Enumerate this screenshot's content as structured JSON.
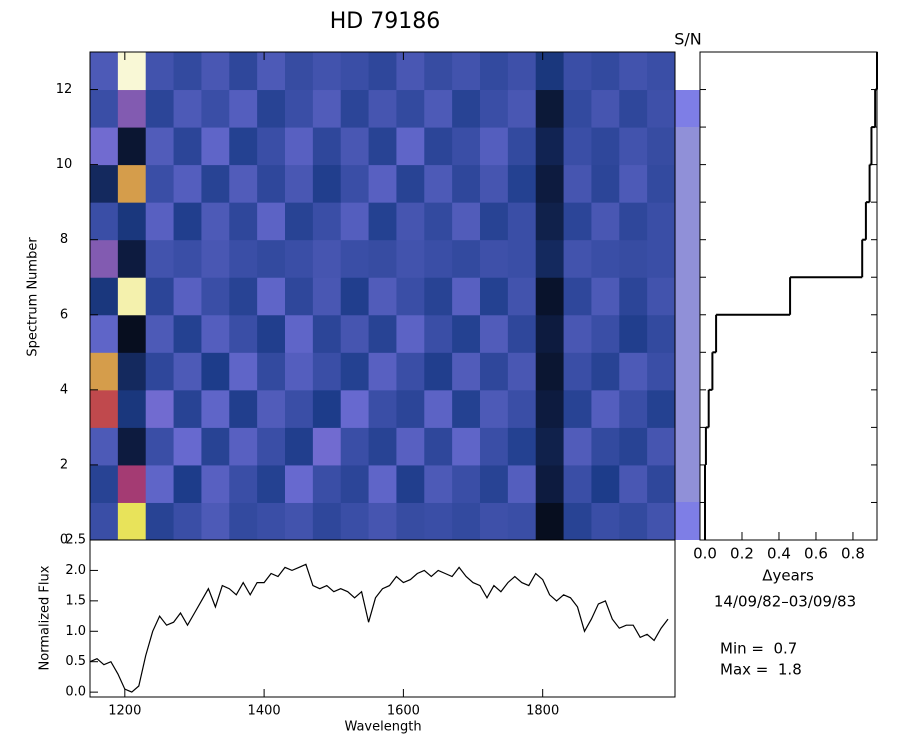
{
  "chart_data": [
    {
      "type": "heatmap",
      "title": "HD  79186",
      "ylabel": "Spectrum Number",
      "sn_label": "S/N",
      "bins": [
        1150,
        1190,
        1230,
        1270,
        1310,
        1350,
        1390,
        1430,
        1470,
        1510,
        1550,
        1590,
        1630,
        1670,
        1710,
        1750,
        1790,
        1830,
        1870,
        1910,
        1950,
        1990
      ],
      "rows": [
        [
          1.0,
          1.6,
          0.95,
          1.0,
          1.05,
          0.98,
          1.0,
          1.02,
          0.97,
          1.0,
          1.03,
          0.99,
          1.0,
          0.98,
          1.01,
          1.0,
          0.75,
          0.95,
          1.0,
          0.98,
          1.02
        ],
        [
          0.95,
          1.3,
          1.1,
          0.92,
          1.08,
          1.0,
          0.94,
          1.12,
          1.0,
          0.96,
          1.1,
          0.93,
          1.05,
          1.0,
          0.95,
          1.07,
          0.8,
          1.0,
          0.92,
          1.04,
          0.97
        ],
        [
          1.05,
          0.8,
          1.0,
          1.12,
          0.95,
          1.08,
          1.0,
          0.93,
          1.15,
          1.0,
          0.95,
          1.08,
          0.97,
          1.1,
          1.0,
          0.94,
          0.82,
          1.06,
          0.98,
          0.95,
          1.03
        ],
        [
          1.4,
          0.9,
          1.15,
          0.95,
          1.1,
          0.93,
          1.06,
          1.0,
          0.92,
          1.12,
          1.0,
          0.96,
          1.09,
          0.94,
          1.05,
          1.0,
          0.8,
          0.95,
          1.07,
          1.0,
          0.94
        ],
        [
          1.5,
          0.85,
          0.97,
          1.05,
          0.92,
          1.1,
          0.98,
          1.07,
          1.0,
          0.94,
          1.08,
          1.0,
          0.93,
          1.06,
          0.97,
          1.04,
          0.78,
          1.0,
          0.95,
          1.05,
          1.0
        ],
        [
          1.1,
          0.75,
          1.05,
          0.94,
          1.07,
          1.0,
          0.93,
          1.1,
          0.96,
          1.03,
          0.95,
          1.09,
          1.0,
          0.94,
          1.06,
          0.97,
          0.8,
          1.04,
          1.0,
          0.93,
          0.98
        ],
        [
          0.9,
          1.7,
          0.96,
          1.08,
          1.0,
          0.95,
          1.1,
          0.97,
          1.04,
          0.93,
          1.06,
          1.0,
          0.95,
          1.08,
          0.94,
          1.02,
          0.77,
          0.97,
          1.05,
          0.96,
          1.02
        ],
        [
          1.2,
          0.8,
          1.02,
          1.0,
          1.04,
          1.0,
          0.98,
          1.0,
          1.03,
          1.0,
          0.99,
          1.02,
          1.0,
          0.98,
          1.01,
          1.0,
          0.85,
          1.02,
          1.0,
          0.99,
          1.0
        ],
        [
          1.0,
          0.9,
          1.08,
          0.93,
          1.05,
          0.97,
          1.09,
          0.95,
          1.0,
          1.07,
          0.94,
          1.03,
          0.98,
          1.06,
          0.95,
          1.0,
          0.82,
          0.96,
          1.04,
          0.97,
          1.0
        ],
        [
          0.85,
          1.5,
          1.0,
          1.07,
          0.95,
          1.06,
          0.97,
          1.04,
          0.93,
          1.0,
          1.08,
          0.95,
          1.05,
          0.97,
          1.03,
          0.94,
          0.8,
          1.03,
          0.96,
          1.05,
          0.98
        ],
        [
          1.15,
          0.78,
          1.06,
          0.96,
          1.1,
          0.94,
          1.0,
          1.08,
          0.97,
          1.04,
          0.95,
          1.1,
          0.96,
          1.0,
          1.07,
          0.98,
          0.83,
          1.0,
          0.97,
          1.02,
          0.99
        ],
        [
          1.0,
          1.2,
          0.96,
          1.05,
          1.0,
          1.07,
          0.95,
          1.0,
          1.06,
          0.96,
          1.03,
          0.98,
          1.05,
          0.95,
          1.0,
          1.04,
          0.79,
          0.98,
          1.03,
          0.97,
          1.01
        ],
        [
          1.05,
          1.75,
          1.02,
          0.98,
          1.04,
          0.97,
          1.05,
          0.99,
          1.02,
          1.0,
          0.97,
          1.04,
          0.99,
          1.02,
          0.98,
          1.01,
          0.9,
          1.0,
          0.98,
          1.02,
          1.0
        ]
      ],
      "xlim": [
        1150,
        1990
      ],
      "xticks": [
        1200,
        1400,
        1600,
        1800
      ],
      "ylim": [
        0,
        13
      ],
      "yticks": [
        0,
        2,
        4,
        6,
        8,
        10,
        12
      ],
      "zmin": {
        "value": 0.7,
        "label": "Min =  0.7"
      },
      "zmax": {
        "value": 1.8,
        "label": "Max =  1.8"
      },
      "colors": [
        "#000000",
        "#1d3c8a",
        "#6e6ed6",
        "#b8284e",
        "#e6e04a",
        "#ffffff"
      ]
    },
    {
      "type": "line",
      "ylabel": "Normalized Flux",
      "xlabel": "Wavelength",
      "color": "#000000",
      "x": [
        1150,
        1160,
        1170,
        1180,
        1190,
        1200,
        1210,
        1220,
        1230,
        1240,
        1250,
        1260,
        1270,
        1280,
        1290,
        1300,
        1310,
        1320,
        1330,
        1340,
        1350,
        1360,
        1370,
        1380,
        1390,
        1400,
        1410,
        1420,
        1430,
        1440,
        1450,
        1460,
        1470,
        1480,
        1490,
        1500,
        1510,
        1520,
        1530,
        1540,
        1550,
        1560,
        1570,
        1580,
        1590,
        1600,
        1610,
        1620,
        1630,
        1640,
        1650,
        1660,
        1670,
        1680,
        1690,
        1700,
        1710,
        1720,
        1730,
        1740,
        1750,
        1760,
        1770,
        1780,
        1790,
        1800,
        1810,
        1820,
        1830,
        1840,
        1850,
        1860,
        1870,
        1880,
        1890,
        1900,
        1910,
        1920,
        1930,
        1940,
        1950,
        1960,
        1970,
        1980
      ],
      "values": [
        0.5,
        0.55,
        0.45,
        0.5,
        0.3,
        0.05,
        0.0,
        0.1,
        0.6,
        1.0,
        1.25,
        1.1,
        1.15,
        1.3,
        1.1,
        1.3,
        1.5,
        1.7,
        1.4,
        1.75,
        1.7,
        1.6,
        1.8,
        1.6,
        1.8,
        1.8,
        1.95,
        1.9,
        2.05,
        2.0,
        2.05,
        2.1,
        1.75,
        1.7,
        1.75,
        1.65,
        1.7,
        1.65,
        1.55,
        1.65,
        1.15,
        1.55,
        1.7,
        1.75,
        1.9,
        1.8,
        1.85,
        1.95,
        2.0,
        1.9,
        2.0,
        1.95,
        1.9,
        2.05,
        1.9,
        1.8,
        1.75,
        1.55,
        1.75,
        1.65,
        1.8,
        1.9,
        1.8,
        1.75,
        1.95,
        1.85,
        1.6,
        1.5,
        1.6,
        1.55,
        1.4,
        1.0,
        1.2,
        1.45,
        1.5,
        1.2,
        1.05,
        1.1,
        1.1,
        0.9,
        0.95,
        0.85,
        1.05,
        1.2
      ],
      "xlim": [
        1150,
        1990
      ],
      "xticks": [
        1200,
        1400,
        1600,
        1800
      ],
      "ylim": [
        -0.08,
        2.5
      ],
      "yticks": [
        {
          "value": 0,
          "label": "0.0"
        },
        0.5,
        {
          "value": 1,
          "label": "1.0"
        },
        1.5,
        {
          "value": 2,
          "label": "2.0"
        },
        2.5
      ]
    },
    {
      "type": "step",
      "xlabel": "Δyears",
      "subtitle": "14/09/82–03/09/83",
      "color": "#000000",
      "values": [
        0.0,
        0.0,
        0.005,
        0.02,
        0.04,
        0.06,
        0.46,
        0.85,
        0.87,
        0.89,
        0.9,
        0.92,
        0.93
      ],
      "xlim": [
        -0.027,
        0.93
      ],
      "xticks": [
        {
          "value": 0,
          "label": "0.0"
        },
        0.2,
        0.4,
        0.6,
        0.8
      ],
      "ylim": [
        0,
        13
      ]
    }
  ]
}
